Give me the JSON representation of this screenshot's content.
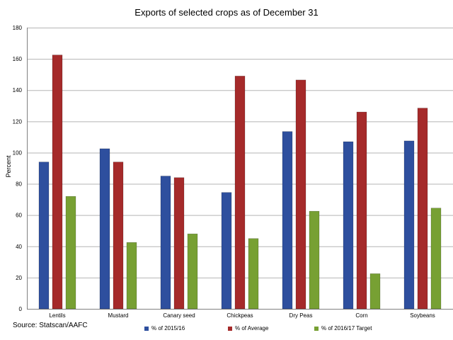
{
  "chart_data": {
    "type": "bar",
    "title": "Exports of selected crops as of December 31",
    "xlabel": "",
    "ylabel": "Percent",
    "ylim": [
      0,
      180
    ],
    "yticks": [
      0,
      20,
      40,
      60,
      80,
      100,
      120,
      140,
      160,
      180
    ],
    "grid": true,
    "legend_position": "bottom",
    "categories": [
      "Lentils",
      "Mustard",
      "Canary seed",
      "Chickpeas",
      "Dry Peas",
      "Corn",
      "Soybeans"
    ],
    "series": [
      {
        "name": "% of 2015/16",
        "color": "#2E4F9E",
        "values": [
          94,
          102.5,
          85,
          74.5,
          113.5,
          107,
          107.5
        ]
      },
      {
        "name": "% of Average",
        "color": "#A52A2A",
        "values": [
          162.5,
          94,
          84,
          149,
          146.5,
          126,
          128.5
        ]
      },
      {
        "name": "% of 2016/17 Target",
        "color": "#77A033",
        "values": [
          72,
          42.5,
          48,
          45,
          62.5,
          22.5,
          64.5
        ]
      }
    ],
    "source": "Source: Statscan/AAFC"
  }
}
